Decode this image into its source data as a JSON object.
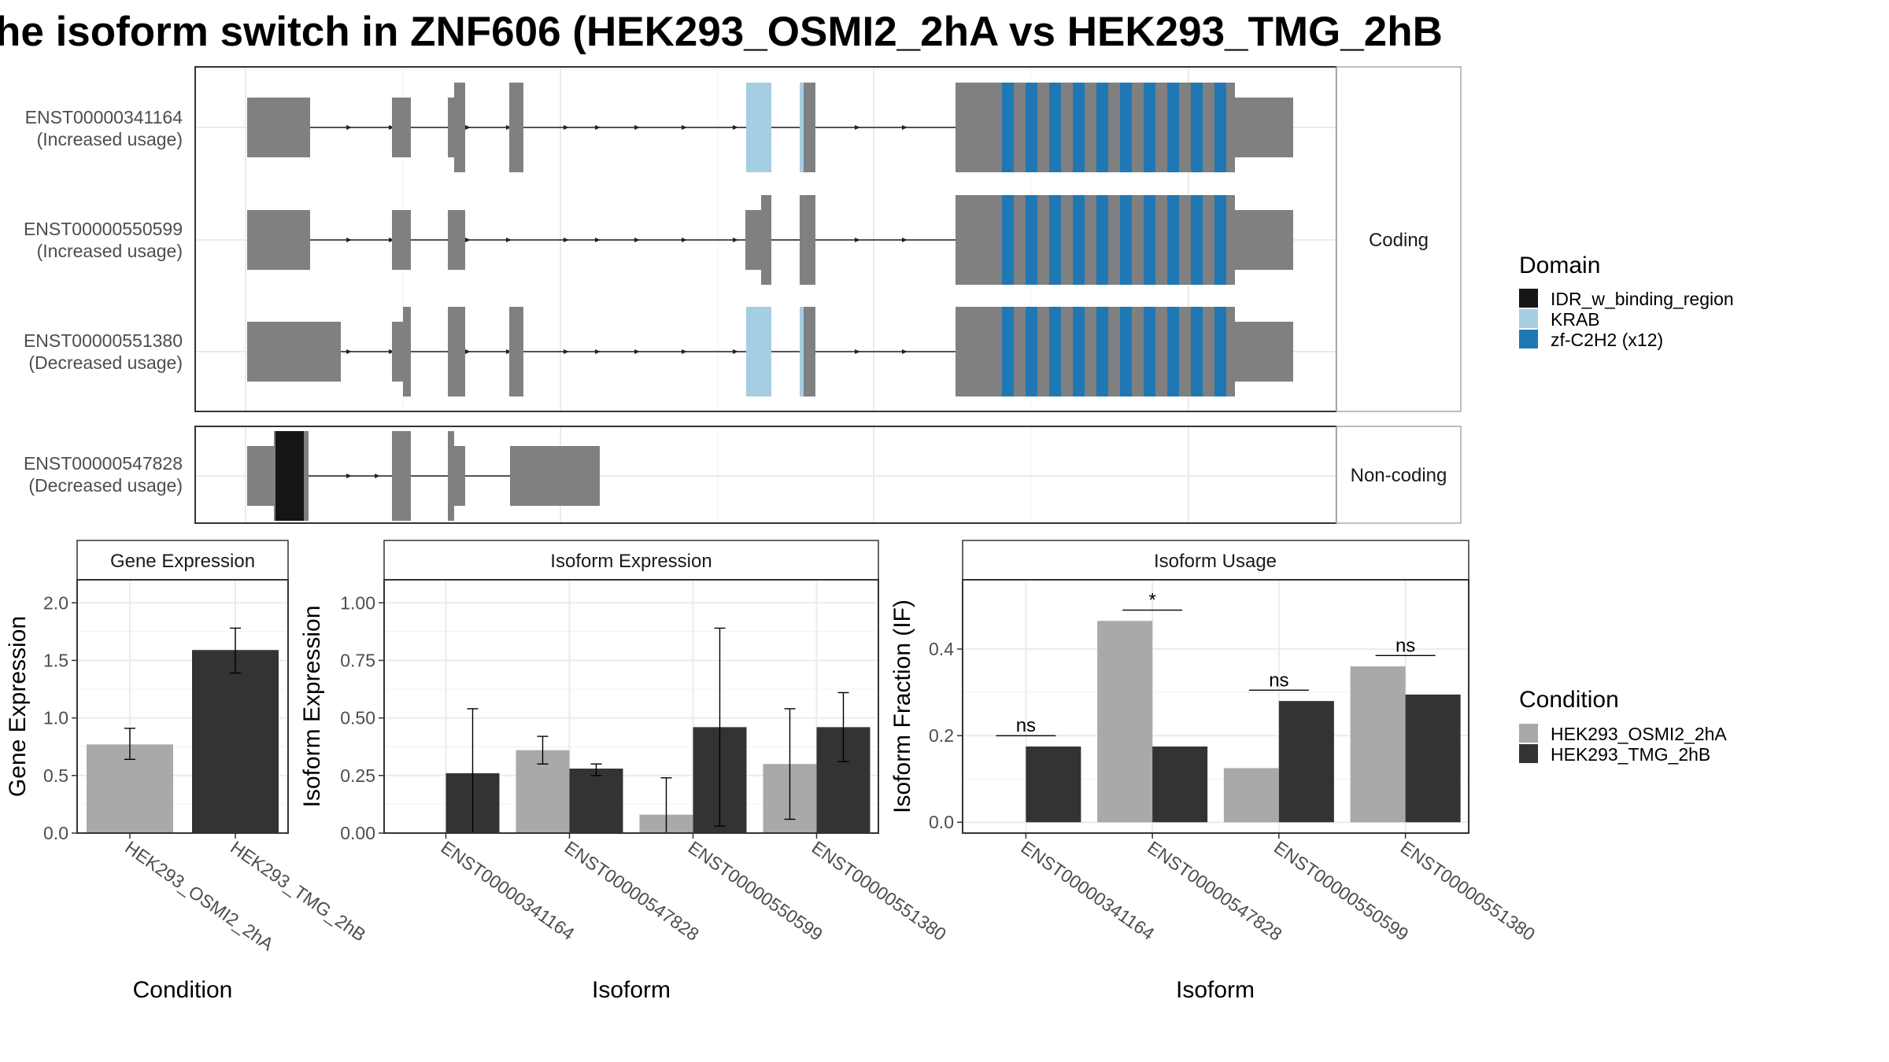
{
  "title": "he isoform switch in ZNF606 (HEK293_OSMI2_2hA vs HEK293_TMG_2hB",
  "colors": {
    "exon": "#808080",
    "IDR_w_binding_region": "#151515",
    "KRAB": "#a6cee3",
    "zf-C2H2 (x12)": "#1f78b4",
    "HEK293_OSMI2_2hA": "#a9a9a9",
    "HEK293_TMG_2hB": "#333333",
    "grid": "#ebebeb",
    "panel_border": "#333333",
    "strip_border": "#a9a9a9"
  },
  "structure": {
    "strips": [
      "Coding",
      "Non-coding"
    ],
    "isoforms": [
      {
        "id": "ENST00000341164",
        "usage": "(Increased usage)",
        "group": "Coding"
      },
      {
        "id": "ENST00000550599",
        "usage": "(Increased usage)",
        "group": "Coding"
      },
      {
        "id": "ENST00000551380",
        "usage": "(Decreased usage)",
        "group": "Coding"
      },
      {
        "id": "ENST00000547828",
        "usage": "(Decreased usage)",
        "group": "Non-coding"
      }
    ]
  },
  "legend": {
    "domain_title": "Domain",
    "domains": [
      "IDR_w_binding_region",
      "KRAB",
      "zf-C2H2 (x12)"
    ],
    "condition_title": "Condition",
    "conditions": [
      "HEK293_OSMI2_2hA",
      "HEK293_TMG_2hB"
    ]
  },
  "chart_data": [
    {
      "type": "bar",
      "title": "Gene Expression",
      "xlabel": "Condition",
      "ylabel": "Gene Expression",
      "ylim": [
        0,
        2.2
      ],
      "yticks": [
        "0.0",
        "0.5",
        "1.0",
        "1.5",
        "2.0"
      ],
      "categories": [
        "HEK293_OSMI2_2hA",
        "HEK293_TMG_2hB"
      ],
      "values": [
        0.77,
        1.59
      ],
      "errors": [
        [
          0.64,
          0.91
        ],
        [
          1.39,
          1.78
        ]
      ]
    },
    {
      "type": "bar",
      "title": "Isoform Expression",
      "xlabel": "Isoform",
      "ylabel": "Isoform Expression",
      "ylim": [
        0,
        1.1
      ],
      "yticks": [
        "0.00",
        "0.25",
        "0.50",
        "0.75",
        "1.00"
      ],
      "categories": [
        "ENST00000341164",
        "ENST00000547828",
        "ENST00000550599",
        "ENST00000551380"
      ],
      "series": [
        {
          "name": "HEK293_OSMI2_2hA",
          "values": [
            0.0,
            0.36,
            0.08,
            0.3
          ],
          "errors": [
            [
              0.0,
              0.0
            ],
            [
              0.3,
              0.42
            ],
            [
              0.0,
              0.24
            ],
            [
              0.06,
              0.54
            ]
          ]
        },
        {
          "name": "HEK293_TMG_2hB",
          "values": [
            0.26,
            0.28,
            0.46,
            0.46
          ],
          "errors": [
            [
              0.0,
              0.54
            ],
            [
              0.25,
              0.3
            ],
            [
              0.03,
              0.89
            ],
            [
              0.31,
              0.61
            ]
          ]
        }
      ]
    },
    {
      "type": "bar",
      "title": "Isoform Usage",
      "xlabel": "Isoform",
      "ylabel": "Isoform Fraction (IF)",
      "ylim": [
        -0.025,
        0.56
      ],
      "yticks": [
        "0.0",
        "0.2",
        "0.4"
      ],
      "categories": [
        "ENST00000341164",
        "ENST00000547828",
        "ENST00000550599",
        "ENST00000551380"
      ],
      "series": [
        {
          "name": "HEK293_OSMI2_2hA",
          "values": [
            0.0,
            0.465,
            0.125,
            0.36
          ]
        },
        {
          "name": "HEK293_TMG_2hB",
          "values": [
            0.175,
            0.175,
            0.28,
            0.295
          ]
        }
      ],
      "significance": [
        "ns",
        "*",
        "ns",
        "ns"
      ],
      "significance_y": [
        0.2,
        0.49,
        0.305,
        0.385
      ]
    }
  ]
}
